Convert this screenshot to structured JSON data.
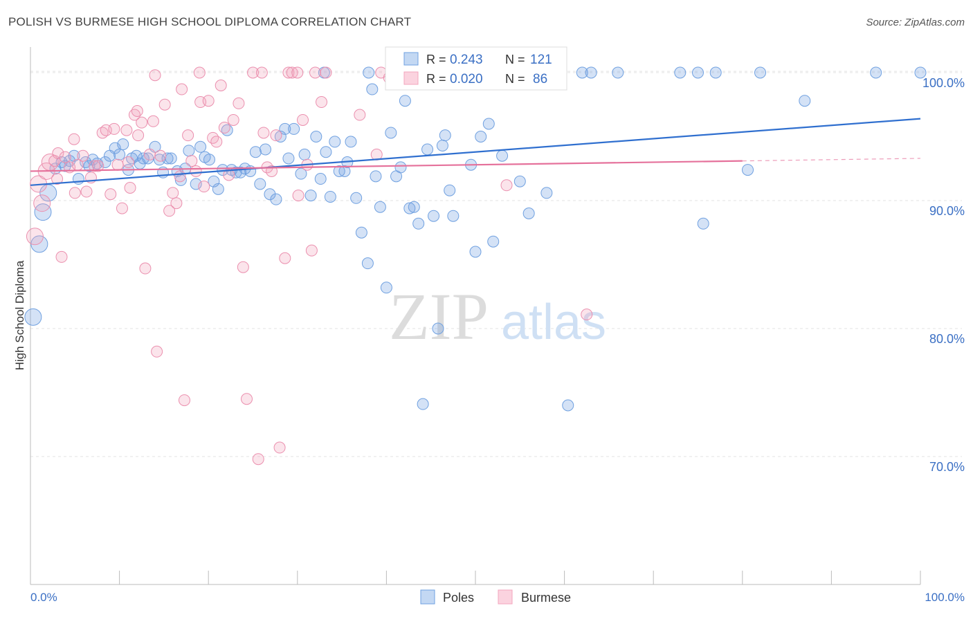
{
  "chart_data": {
    "type": "scatter",
    "title": "POLISH VS BURMESE HIGH SCHOOL DIPLOMA CORRELATION CHART",
    "source": "Source: ZipAtlas.com",
    "ylabel": "High School Diploma",
    "xlabel": "",
    "xlim": [
      0,
      100
    ],
    "ylim": [
      60,
      102
    ],
    "x_tick_labels": [
      "0.0%",
      "100.0%"
    ],
    "y_ticks": [
      70,
      80,
      90,
      100
    ],
    "y_tick_labels": [
      "70.0%",
      "80.0%",
      "90.0%",
      "100.0%"
    ],
    "grid": true,
    "watermark": {
      "zip": "ZIP",
      "atlas": "atlas"
    },
    "legend_stats": [
      {
        "r_label": "R =",
        "r_value": "0.243",
        "n_label": "N =",
        "n_value": "121"
      },
      {
        "r_label": "R =",
        "r_value": "0.020",
        "n_label": "N =",
        "n_value": "86"
      }
    ],
    "colors": {
      "poles": "#6fa0e0",
      "burmese": "#f3a5bd",
      "poles_line": "#2f6fcf",
      "burmese_line": "#e5719b",
      "stat_text": "#3a6fc4"
    },
    "series": [
      {
        "name": "Poles",
        "trend": {
          "x": [
            0,
            100
          ],
          "y": [
            91.2,
            96.4
          ]
        },
        "points": [
          [
            0.3,
            80.9
          ],
          [
            1.0,
            86.6
          ],
          [
            1.4,
            89.1
          ],
          [
            2.0,
            90.6
          ],
          [
            2.8,
            92.5
          ],
          [
            3.5,
            93.0
          ],
          [
            3.9,
            92.7
          ],
          [
            4.4,
            93.1
          ],
          [
            4.9,
            93.5
          ],
          [
            5.4,
            91.7
          ],
          [
            6.2,
            93.0
          ],
          [
            6.6,
            92.7
          ],
          [
            7.0,
            93.2
          ],
          [
            7.5,
            92.9
          ],
          [
            8.4,
            93.0
          ],
          [
            8.9,
            93.5
          ],
          [
            9.5,
            94.1
          ],
          [
            10.0,
            93.6
          ],
          [
            10.4,
            94.4
          ],
          [
            11.0,
            92.4
          ],
          [
            11.4,
            93.3
          ],
          [
            11.9,
            93.5
          ],
          [
            12.3,
            92.9
          ],
          [
            12.7,
            93.3
          ],
          [
            13.2,
            93.3
          ],
          [
            14.0,
            94.2
          ],
          [
            14.5,
            93.2
          ],
          [
            14.9,
            92.2
          ],
          [
            15.4,
            93.3
          ],
          [
            15.8,
            93.3
          ],
          [
            16.5,
            92.3
          ],
          [
            16.9,
            91.6
          ],
          [
            17.4,
            92.5
          ],
          [
            17.8,
            93.9
          ],
          [
            18.6,
            91.3
          ],
          [
            19.1,
            94.2
          ],
          [
            19.6,
            93.4
          ],
          [
            20.1,
            93.2
          ],
          [
            20.6,
            91.5
          ],
          [
            21.1,
            90.9
          ],
          [
            21.6,
            92.4
          ],
          [
            22.1,
            95.5
          ],
          [
            22.6,
            92.4
          ],
          [
            23.1,
            92.2
          ],
          [
            23.6,
            92.2
          ],
          [
            24.1,
            92.5
          ],
          [
            24.7,
            92.3
          ],
          [
            25.3,
            93.8
          ],
          [
            25.8,
            91.3
          ],
          [
            26.4,
            94.0
          ],
          [
            26.9,
            90.5
          ],
          [
            27.6,
            90.1
          ],
          [
            28.1,
            95.0
          ],
          [
            28.6,
            95.6
          ],
          [
            29.0,
            93.3
          ],
          [
            29.6,
            95.6
          ],
          [
            30.4,
            92.1
          ],
          [
            30.8,
            93.6
          ],
          [
            31.5,
            90.4
          ],
          [
            32.1,
            95.0
          ],
          [
            32.6,
            91.7
          ],
          [
            33.2,
            93.8
          ],
          [
            33.7,
            90.3
          ],
          [
            34.2,
            94.6
          ],
          [
            34.7,
            92.3
          ],
          [
            35.3,
            92.3
          ],
          [
            35.6,
            93.0
          ],
          [
            36.0,
            94.6
          ],
          [
            36.6,
            90.2
          ],
          [
            37.2,
            87.5
          ],
          [
            37.9,
            85.1
          ],
          [
            38.4,
            98.7
          ],
          [
            38.8,
            91.9
          ],
          [
            39.3,
            89.5
          ],
          [
            40.0,
            83.2
          ],
          [
            40.5,
            95.3
          ],
          [
            41.1,
            91.9
          ],
          [
            41.6,
            92.6
          ],
          [
            42.1,
            97.8
          ],
          [
            42.6,
            89.4
          ],
          [
            43.1,
            89.5
          ],
          [
            43.6,
            88.2
          ],
          [
            44.1,
            74.1
          ],
          [
            44.6,
            94.0
          ],
          [
            45.3,
            88.8
          ],
          [
            45.8,
            80.0
          ],
          [
            46.3,
            94.3
          ],
          [
            46.6,
            95.1
          ],
          [
            47.1,
            90.8
          ],
          [
            47.5,
            88.8
          ],
          [
            48.0,
            100.0
          ],
          [
            49.0,
            100.0
          ],
          [
            50.0,
            86.0
          ],
          [
            50.6,
            95.0
          ],
          [
            51.5,
            96.0
          ],
          [
            52.0,
            86.8
          ],
          [
            53.0,
            93.5
          ],
          [
            54.0,
            100.0
          ],
          [
            55.0,
            91.5
          ],
          [
            56.0,
            89.0
          ],
          [
            57.0,
            100.0
          ],
          [
            58.0,
            90.6
          ],
          [
            60.4,
            74.0
          ],
          [
            62.0,
            100.0
          ],
          [
            63.0,
            100.0
          ],
          [
            66.0,
            100.0
          ],
          [
            73.0,
            100.0
          ],
          [
            75.0,
            100.0
          ],
          [
            75.6,
            88.2
          ],
          [
            77.0,
            100.0
          ],
          [
            80.6,
            92.4
          ],
          [
            82.0,
            100.0
          ],
          [
            87.0,
            97.8
          ],
          [
            95.0,
            100.0
          ],
          [
            100.0,
            100.0
          ],
          [
            38.0,
            100.0
          ],
          [
            42.0,
            100.0
          ],
          [
            49.5,
            92.8
          ],
          [
            33.0,
            100.0
          ],
          [
            51.0,
            100.0
          ],
          [
            41.0,
            100.0
          ]
        ]
      },
      {
        "name": "Burmese",
        "trend": {
          "x": [
            0,
            80
          ],
          "y": [
            92.3,
            93.1
          ]
        },
        "points": [
          [
            0.5,
            87.2
          ],
          [
            0.9,
            91.3
          ],
          [
            1.3,
            89.8
          ],
          [
            1.8,
            92.3
          ],
          [
            2.2,
            93.0
          ],
          [
            2.7,
            93.1
          ],
          [
            3.1,
            93.7
          ],
          [
            3.5,
            85.6
          ],
          [
            3.9,
            93.4
          ],
          [
            4.4,
            92.6
          ],
          [
            4.9,
            94.8
          ],
          [
            5.3,
            92.8
          ],
          [
            5.9,
            93.5
          ],
          [
            6.3,
            90.7
          ],
          [
            6.8,
            91.8
          ],
          [
            7.2,
            92.7
          ],
          [
            7.6,
            92.7
          ],
          [
            8.1,
            95.3
          ],
          [
            8.5,
            95.5
          ],
          [
            9.0,
            90.5
          ],
          [
            9.4,
            95.6
          ],
          [
            9.8,
            92.8
          ],
          [
            10.3,
            89.4
          ],
          [
            10.8,
            95.5
          ],
          [
            11.2,
            91.0
          ],
          [
            11.7,
            96.7
          ],
          [
            12.1,
            95.1
          ],
          [
            12.5,
            96.1
          ],
          [
            12.9,
            84.7
          ],
          [
            13.4,
            93.6
          ],
          [
            13.8,
            96.2
          ],
          [
            14.2,
            78.2
          ],
          [
            14.6,
            93.5
          ],
          [
            15.1,
            97.5
          ],
          [
            15.6,
            89.2
          ],
          [
            16.0,
            90.6
          ],
          [
            16.4,
            89.8
          ],
          [
            16.8,
            91.9
          ],
          [
            17.3,
            74.4
          ],
          [
            17.7,
            95.1
          ],
          [
            18.1,
            93.1
          ],
          [
            18.6,
            92.3
          ],
          [
            19.1,
            97.7
          ],
          [
            19.5,
            91.1
          ],
          [
            20.0,
            97.8
          ],
          [
            20.5,
            94.9
          ],
          [
            20.9,
            94.6
          ],
          [
            21.4,
            99.0
          ],
          [
            21.8,
            95.7
          ],
          [
            22.3,
            92.0
          ],
          [
            22.8,
            96.3
          ],
          [
            23.4,
            97.6
          ],
          [
            23.9,
            84.8
          ],
          [
            24.3,
            74.5
          ],
          [
            25.0,
            100.0
          ],
          [
            25.6,
            69.8
          ],
          [
            26.2,
            95.3
          ],
          [
            26.6,
            92.6
          ],
          [
            27.1,
            92.3
          ],
          [
            27.6,
            95.1
          ],
          [
            28.0,
            70.7
          ],
          [
            28.6,
            85.5
          ],
          [
            29.0,
            100.0
          ],
          [
            29.4,
            100.0
          ],
          [
            30.1,
            90.4
          ],
          [
            30.6,
            96.3
          ],
          [
            31.1,
            92.8
          ],
          [
            31.6,
            86.1
          ],
          [
            32.0,
            100.0
          ],
          [
            32.7,
            97.7
          ],
          [
            33.2,
            100.0
          ],
          [
            37.0,
            96.7
          ],
          [
            38.9,
            93.6
          ],
          [
            39.4,
            100.0
          ],
          [
            40.3,
            99.6
          ],
          [
            53.5,
            91.2
          ],
          [
            62.5,
            81.1
          ],
          [
            3.0,
            91.7
          ],
          [
            5.0,
            90.6
          ],
          [
            14.0,
            99.8
          ],
          [
            19.0,
            100.0
          ],
          [
            30.0,
            100.0
          ],
          [
            12.0,
            97.0
          ],
          [
            17.0,
            98.7
          ],
          [
            11.0,
            93.0
          ],
          [
            26.0,
            100.0
          ]
        ]
      }
    ]
  }
}
